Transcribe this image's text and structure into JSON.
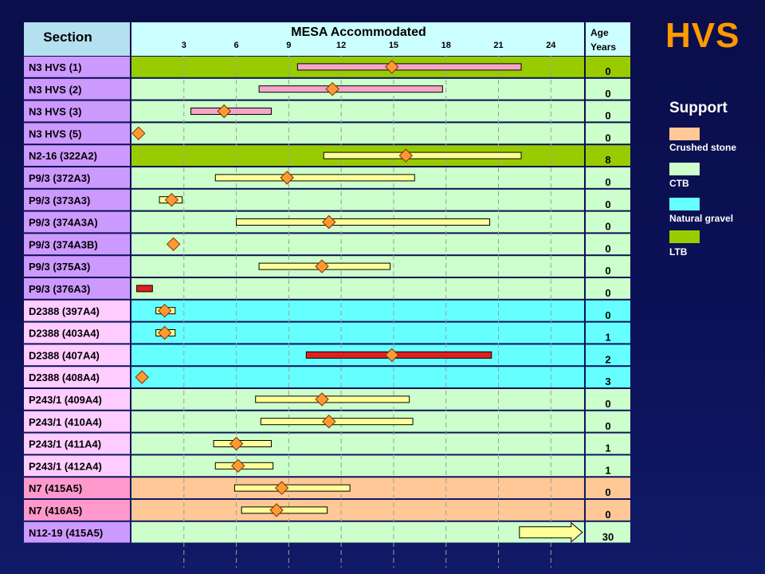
{
  "title": "HVS",
  "legend": {
    "title": "Support",
    "items": [
      {
        "label": "Crushed stone",
        "color": "#ffc896"
      },
      {
        "label": "CTB",
        "color": "#ccffcc"
      },
      {
        "label": "Natural gravel",
        "color": "#66ffff"
      },
      {
        "label": "LTB",
        "color": "#99cc00"
      }
    ]
  },
  "chart_data": {
    "type": "bar",
    "title": "MESA Accommodated",
    "row_header": "Section",
    "age_header": [
      "Age",
      "Years"
    ],
    "xticks": [
      3,
      6,
      9,
      12,
      15,
      18,
      21,
      24
    ],
    "xlim": [
      0,
      26
    ],
    "rows": [
      {
        "label": "N3 HVS (1)",
        "support": "LTB",
        "low": 9.5,
        "high": 22.3,
        "marker": 14.9,
        "bar": "pink",
        "age": "0"
      },
      {
        "label": "N3 HVS (2)",
        "support": "CTB",
        "low": 7.3,
        "high": 17.8,
        "marker": 11.5,
        "bar": "pink",
        "age": "0"
      },
      {
        "label": "N3 HVS (3)",
        "support": "CTB",
        "low": 3.4,
        "high": 8.0,
        "marker": 5.3,
        "bar": "pink",
        "age": "0"
      },
      {
        "label": "N3 HVS (5)",
        "support": "CTB",
        "low": null,
        "high": null,
        "marker": 0.4,
        "bar": "none",
        "age": "0"
      },
      {
        "label": "N2-16 (322A2)",
        "support": "LTB",
        "low": 11.0,
        "high": 22.3,
        "marker": 15.7,
        "bar": "yellow",
        "age": "8"
      },
      {
        "label": "P9/3 (372A3)",
        "support": "CTB",
        "low": 4.8,
        "high": 16.2,
        "marker": 8.9,
        "bar": "yellow",
        "age": "0"
      },
      {
        "label": "P9/3 (373A3)",
        "support": "CTB",
        "low": 1.6,
        "high": 2.9,
        "marker": 2.3,
        "bar": "yellow",
        "age": "0"
      },
      {
        "label": "P9/3 (374A3A)",
        "support": "CTB",
        "low": 6.0,
        "high": 20.5,
        "marker": 11.3,
        "bar": "yellow",
        "age": "0"
      },
      {
        "label": "P9/3 (374A3B)",
        "support": "CTB",
        "low": null,
        "high": null,
        "marker": 2.4,
        "bar": "none",
        "age": "0"
      },
      {
        "label": "P9/3 (375A3)",
        "support": "CTB",
        "low": 7.3,
        "high": 14.8,
        "marker": 10.9,
        "bar": "yellow",
        "age": "0"
      },
      {
        "label": "P9/3 (376A3)",
        "support": "CTB",
        "low": 0.3,
        "high": 1.2,
        "marker": null,
        "bar": "red",
        "age": "0"
      },
      {
        "label": "D2388 (397A4)",
        "support": "Natural gravel",
        "low": 1.4,
        "high": 2.5,
        "marker": 1.9,
        "bar": "yellow",
        "age": "0"
      },
      {
        "label": "D2388 (403A4)",
        "support": "Natural gravel",
        "low": 1.4,
        "high": 2.5,
        "marker": 1.9,
        "bar": "yellow",
        "age": "1"
      },
      {
        "label": "D2388 (407A4)",
        "support": "Natural gravel",
        "low": 10.0,
        "high": 20.6,
        "marker": 14.9,
        "bar": "red",
        "age": "2"
      },
      {
        "label": "D2388 (408A4)",
        "support": "Natural gravel",
        "low": null,
        "high": null,
        "marker": 0.6,
        "bar": "none",
        "age": "3"
      },
      {
        "label": "P243/1 (409A4)",
        "support": "CTB",
        "low": 7.1,
        "high": 15.9,
        "marker": 10.9,
        "bar": "yellow",
        "age": "0"
      },
      {
        "label": "P243/1 (410A4)",
        "support": "CTB",
        "low": 7.4,
        "high": 16.1,
        "marker": 11.3,
        "bar": "yellow",
        "age": "0"
      },
      {
        "label": "P243/1 (411A4)",
        "support": "CTB",
        "low": 4.7,
        "high": 8.0,
        "marker": 6.0,
        "bar": "yellow",
        "age": "1"
      },
      {
        "label": "P243/1 (412A4)",
        "support": "CTB",
        "low": 4.8,
        "high": 8.1,
        "marker": 6.1,
        "bar": "yellow",
        "age": "1"
      },
      {
        "label": "N7 (415A5)",
        "support": "Crushed stone",
        "low": 5.9,
        "high": 12.5,
        "marker": 8.6,
        "bar": "yellow",
        "age": "0"
      },
      {
        "label": "N7 (416A5)",
        "support": "Crushed stone",
        "low": 6.3,
        "high": 11.2,
        "marker": 8.3,
        "bar": "yellow",
        "age": "0"
      },
      {
        "label": "N12-19 (415A5)",
        "support": "CTB",
        "low": null,
        "high": null,
        "marker": null,
        "bar": "arrow",
        "arrow_from": 22.2,
        "arrow_to": 25.8,
        "age": "30"
      }
    ]
  }
}
